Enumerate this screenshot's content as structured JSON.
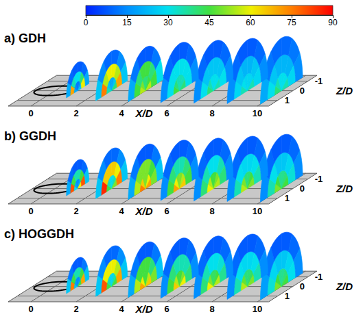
{
  "chart_data": {
    "type": "slices3d",
    "colorbar": {
      "lim": [
        0,
        90
      ],
      "ticks": [
        0,
        15,
        30,
        45,
        60,
        75,
        90
      ]
    },
    "x_label": "X/D",
    "z_label": "Z/D",
    "xlim": [
      -1,
      10.5
    ],
    "xticks": [
      0,
      2,
      4,
      6,
      8,
      10
    ],
    "zlim": [
      -1.6,
      1.6
    ],
    "zticks": [
      -1,
      0,
      1
    ],
    "hole": {
      "x": 0,
      "z": 0,
      "semi_axes": [
        0.87,
        0.5
      ]
    },
    "panels": [
      {
        "label": "a) GDH",
        "slices": [
          {
            "x": 1,
            "radius": 0.75,
            "cells": [
              [
                20,
                15,
                12,
                12,
                15,
                25
              ],
              [
                70,
                35,
                30,
                30,
                40,
                60
              ],
              [
                20,
                10,
                8,
                8,
                10,
                20
              ]
            ]
          },
          {
            "x": 2.5,
            "radius": 1.05,
            "cells": [
              [
                35,
                25,
                20,
                20,
                25,
                40
              ],
              [
                75,
                55,
                60,
                60,
                55,
                70
              ],
              [
                25,
                15,
                10,
                10,
                15,
                25
              ]
            ]
          },
          {
            "x": 4,
            "radius": 1.15,
            "cells": [
              [
                55,
                50,
                40,
                40,
                45,
                55
              ],
              [
                45,
                40,
                45,
                45,
                40,
                45
              ],
              [
                20,
                12,
                8,
                8,
                12,
                30
              ]
            ]
          },
          {
            "x": 5.5,
            "radius": 1.25,
            "cells": [
              [
                45,
                40,
                35,
                35,
                35,
                40
              ],
              [
                30,
                30,
                30,
                30,
                30,
                30
              ],
              [
                15,
                10,
                8,
                8,
                10,
                15
              ]
            ]
          },
          {
            "x": 7,
            "radius": 1.3,
            "cells": [
              [
                40,
                35,
                30,
                30,
                30,
                35
              ],
              [
                30,
                25,
                25,
                25,
                25,
                30
              ],
              [
                15,
                10,
                8,
                8,
                10,
                15
              ]
            ]
          },
          {
            "x": 8.5,
            "radius": 1.35,
            "cells": [
              [
                35,
                30,
                28,
                28,
                28,
                35
              ],
              [
                28,
                25,
                22,
                22,
                25,
                28
              ],
              [
                15,
                10,
                8,
                8,
                10,
                15
              ]
            ]
          },
          {
            "x": 10,
            "radius": 1.4,
            "cells": [
              [
                40,
                35,
                30,
                30,
                30,
                35
              ],
              [
                30,
                25,
                22,
                22,
                22,
                28
              ],
              [
                20,
                12,
                10,
                10,
                12,
                15
              ]
            ]
          }
        ]
      },
      {
        "label": "b) GGDH",
        "slices": [
          {
            "x": 1,
            "radius": 0.75,
            "cells": [
              [
                30,
                20,
                15,
                15,
                20,
                60
              ],
              [
                80,
                45,
                35,
                35,
                45,
                80
              ],
              [
                20,
                10,
                8,
                8,
                10,
                25
              ]
            ]
          },
          {
            "x": 2.5,
            "radius": 1.05,
            "cells": [
              [
                45,
                35,
                30,
                30,
                35,
                50
              ],
              [
                85,
                65,
                65,
                65,
                60,
                75
              ],
              [
                25,
                15,
                10,
                10,
                15,
                25
              ]
            ]
          },
          {
            "x": 4,
            "radius": 1.15,
            "cells": [
              [
                75,
                65,
                50,
                50,
                60,
                70
              ],
              [
                55,
                50,
                50,
                50,
                45,
                50
              ],
              [
                20,
                12,
                8,
                8,
                12,
                25
              ]
            ]
          },
          {
            "x": 5.5,
            "radius": 1.25,
            "cells": [
              [
                70,
                60,
                50,
                50,
                55,
                65
              ],
              [
                45,
                40,
                35,
                35,
                40,
                45
              ],
              [
                15,
                10,
                8,
                8,
                10,
                15
              ]
            ]
          },
          {
            "x": 7,
            "radius": 1.3,
            "cells": [
              [
                60,
                55,
                45,
                45,
                50,
                55
              ],
              [
                40,
                35,
                30,
                30,
                35,
                40
              ],
              [
                15,
                10,
                8,
                8,
                10,
                15
              ]
            ]
          },
          {
            "x": 8.5,
            "radius": 1.35,
            "cells": [
              [
                55,
                50,
                40,
                40,
                45,
                50
              ],
              [
                35,
                30,
                28,
                28,
                30,
                35
              ],
              [
                15,
                10,
                8,
                8,
                10,
                15
              ]
            ]
          },
          {
            "x": 10,
            "radius": 1.4,
            "cells": [
              [
                50,
                45,
                38,
                38,
                40,
                45
              ],
              [
                35,
                30,
                25,
                25,
                28,
                32
              ],
              [
                15,
                10,
                8,
                8,
                10,
                15
              ]
            ]
          }
        ]
      },
      {
        "label": "c) HOGGDH",
        "slices": [
          {
            "x": 1,
            "radius": 0.75,
            "cells": [
              [
                25,
                18,
                15,
                15,
                18,
                45
              ],
              [
                75,
                45,
                35,
                35,
                45,
                70
              ],
              [
                25,
                12,
                8,
                8,
                12,
                25
              ]
            ]
          },
          {
            "x": 2.5,
            "radius": 1.05,
            "cells": [
              [
                45,
                35,
                28,
                28,
                35,
                45
              ],
              [
                80,
                60,
                60,
                60,
                55,
                70
              ],
              [
                25,
                15,
                10,
                10,
                15,
                25
              ]
            ]
          },
          {
            "x": 4,
            "radius": 1.15,
            "cells": [
              [
                70,
                60,
                45,
                45,
                55,
                65
              ],
              [
                55,
                45,
                45,
                45,
                40,
                50
              ],
              [
                20,
                12,
                8,
                8,
                12,
                25
              ]
            ]
          },
          {
            "x": 5.5,
            "radius": 1.25,
            "cells": [
              [
                65,
                55,
                45,
                45,
                50,
                60
              ],
              [
                45,
                40,
                35,
                35,
                35,
                40
              ],
              [
                15,
                10,
                8,
                8,
                10,
                15
              ]
            ]
          },
          {
            "x": 7,
            "radius": 1.3,
            "cells": [
              [
                60,
                50,
                42,
                42,
                45,
                55
              ],
              [
                40,
                35,
                30,
                30,
                32,
                38
              ],
              [
                15,
                10,
                8,
                8,
                10,
                15
              ]
            ]
          },
          {
            "x": 8.5,
            "radius": 1.35,
            "cells": [
              [
                55,
                48,
                40,
                40,
                42,
                50
              ],
              [
                35,
                30,
                28,
                28,
                30,
                35
              ],
              [
                15,
                10,
                8,
                8,
                10,
                15
              ]
            ]
          },
          {
            "x": 10,
            "radius": 1.4,
            "cells": [
              [
                50,
                45,
                38,
                38,
                40,
                45
              ],
              [
                32,
                28,
                25,
                25,
                28,
                30
              ],
              [
                18,
                12,
                8,
                8,
                10,
                15
              ]
            ]
          }
        ]
      }
    ]
  }
}
